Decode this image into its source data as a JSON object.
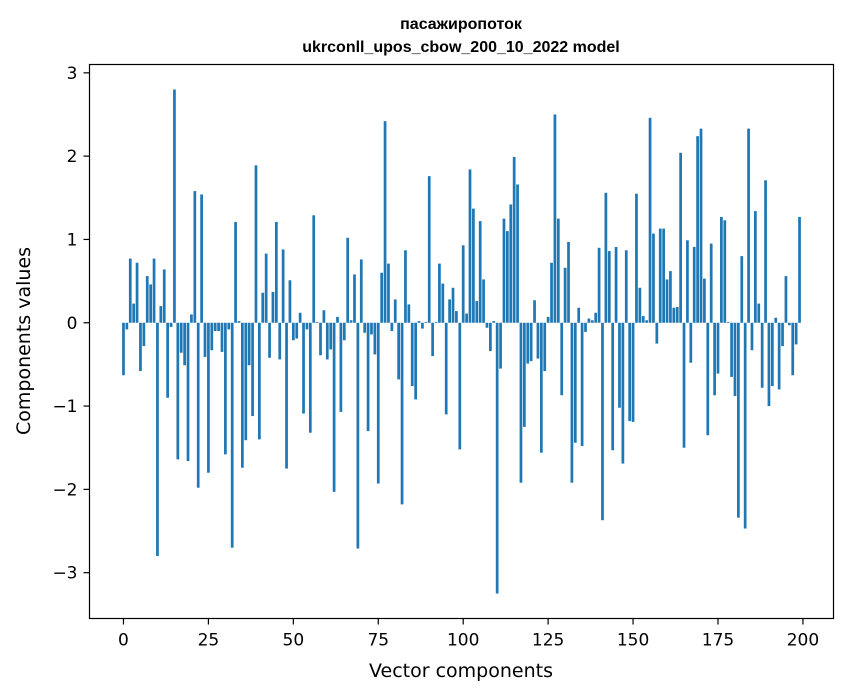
{
  "chart_data": {
    "type": "bar",
    "title_line1": "пасажиропоток",
    "title_line2": "ukrconll_upos_cbow_200_10_2022 model",
    "xlabel": "Vector components",
    "ylabel": "Components values",
    "xlim": [
      -10,
      209
    ],
    "ylim": [
      -3.55,
      3.1
    ],
    "xticks": [
      0,
      25,
      50,
      75,
      100,
      125,
      150,
      175,
      200
    ],
    "yticks": [
      -3,
      -2,
      -1,
      0,
      1,
      2,
      3
    ],
    "ytick_labels": [
      "−3",
      "−2",
      "−1",
      "0",
      "1",
      "2",
      "3"
    ],
    "grid": false,
    "bar_color": "#1f77b4",
    "values": [
      -0.63,
      -0.08,
      0.77,
      0.23,
      0.72,
      -0.58,
      -0.28,
      0.56,
      0.46,
      0.77,
      -2.8,
      0.2,
      0.64,
      -0.9,
      -0.05,
      2.8,
      -1.64,
      -0.36,
      -0.51,
      -1.66,
      0.1,
      1.58,
      -1.98,
      1.54,
      -0.41,
      -1.8,
      -0.33,
      -0.1,
      -0.1,
      -0.35,
      -1.58,
      -0.08,
      -2.7,
      1.21,
      0.02,
      -1.74,
      -1.41,
      -0.51,
      -1.12,
      1.89,
      -1.4,
      0.36,
      0.83,
      -0.42,
      0.37,
      1.21,
      -0.44,
      0.88,
      -1.75,
      0.51,
      -0.21,
      -0.19,
      0.12,
      -1.09,
      -0.08,
      -1.32,
      1.29,
      0.01,
      -0.39,
      0.15,
      -0.44,
      -0.32,
      -2.03,
      0.07,
      -1.07,
      -0.21,
      1.02,
      0.03,
      0.58,
      -2.71,
      0.76,
      -0.12,
      -1.3,
      -0.14,
      -0.38,
      -1.93,
      0.6,
      2.42,
      0.71,
      -0.1,
      0.28,
      -0.68,
      -2.18,
      0.87,
      0.22,
      -0.76,
      -0.92,
      0.02,
      -0.07,
      0.01,
      1.76,
      -0.4,
      0.01,
      0.71,
      0.47,
      -1.1,
      0.28,
      0.42,
      0.14,
      -1.52,
      0.93,
      0.11,
      1.84,
      1.37,
      0.26,
      1.22,
      0.52,
      -0.06,
      -0.34,
      0.02,
      -3.25,
      -0.55,
      1.25,
      1.1,
      1.42,
      1.99,
      1.66,
      -1.92,
      -1.25,
      -0.49,
      -0.46,
      0.27,
      -0.43,
      -1.56,
      -0.58,
      0.07,
      0.72,
      2.5,
      1.25,
      -0.87,
      0.66,
      0.97,
      -1.92,
      -1.44,
      0.18,
      -1.48,
      -0.11,
      0.05,
      0.03,
      0.12,
      0.9,
      -2.37,
      1.56,
      0.86,
      -1.53,
      0.91,
      -1.02,
      -1.69,
      0.87,
      -1.18,
      -1.19,
      1.55,
      0.42,
      0.08,
      0.03,
      2.46,
      1.07,
      -0.25,
      1.13,
      1.13,
      0.52,
      0.62,
      0.18,
      0.19,
      2.04,
      -1.5,
      0.99,
      -0.48,
      0.91,
      2.24,
      2.33,
      0.53,
      -1.35,
      0.95,
      -0.87,
      -0.61,
      1.27,
      1.23,
      0.01,
      -0.65,
      -0.88,
      -2.34,
      0.8,
      -2.47,
      2.33,
      -0.33,
      1.34,
      0.23,
      -0.78,
      1.71,
      -1.0,
      -0.76,
      0.06,
      -0.8,
      -0.28,
      0.56,
      -0.03,
      -0.63,
      -0.26,
      1.27
    ]
  }
}
